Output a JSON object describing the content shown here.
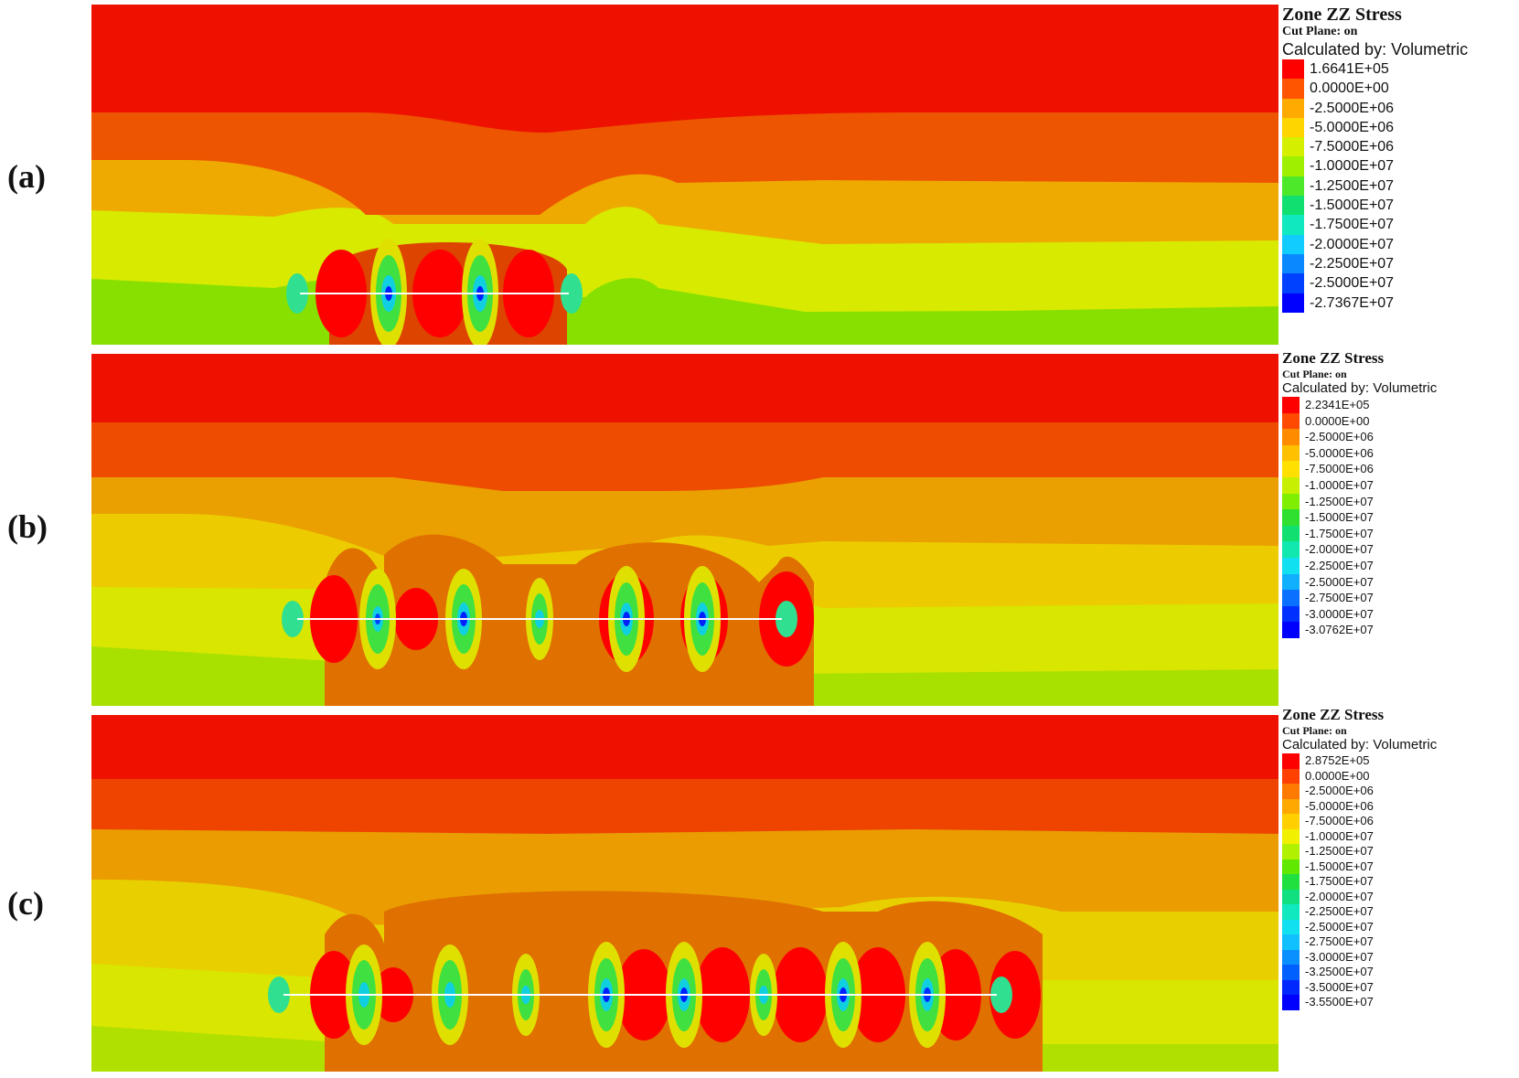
{
  "panels": [
    {
      "letter": "(a)",
      "legend": {
        "title": "Zone ZZ Stress",
        "cut_plane": "Cut Plane: on",
        "calculated_by": "Calculated by: Volumetric",
        "entries": [
          {
            "value": "1.6641E+05",
            "color": "#ff0000"
          },
          {
            "value": "0.0000E+00",
            "color": "#ff5500"
          },
          {
            "value": "-2.5000E+06",
            "color": "#ffaa00"
          },
          {
            "value": "-5.0000E+06",
            "color": "#ffd500"
          },
          {
            "value": "-7.5000E+06",
            "color": "#d4f000"
          },
          {
            "value": "-1.0000E+07",
            "color": "#9ef000"
          },
          {
            "value": "-1.2500E+07",
            "color": "#4ee82a"
          },
          {
            "value": "-1.5000E+07",
            "color": "#10e070"
          },
          {
            "value": "-1.7500E+07",
            "color": "#10e8c0"
          },
          {
            "value": "-2.0000E+07",
            "color": "#10ccff"
          },
          {
            "value": "-2.2500E+07",
            "color": "#0a88ff"
          },
          {
            "value": "-2.5000E+07",
            "color": "#0040ff"
          },
          {
            "value": "-2.7367E+07",
            "color": "#0000ff"
          }
        ]
      }
    },
    {
      "letter": "(b)",
      "legend": {
        "title": "Zone ZZ Stress",
        "cut_plane": "Cut Plane: on",
        "calculated_by": "Calculated by: Volumetric",
        "entries": [
          {
            "value": "2.2341E+05",
            "color": "#ff0000"
          },
          {
            "value": "0.0000E+00",
            "color": "#ff4a00"
          },
          {
            "value": "-2.5000E+06",
            "color": "#ff8c00"
          },
          {
            "value": "-5.0000E+06",
            "color": "#ffc000"
          },
          {
            "value": "-7.5000E+06",
            "color": "#ffe000"
          },
          {
            "value": "-1.0000E+07",
            "color": "#c6f000"
          },
          {
            "value": "-1.2500E+07",
            "color": "#80ee00"
          },
          {
            "value": "-1.5000E+07",
            "color": "#30e030"
          },
          {
            "value": "-1.7500E+07",
            "color": "#10e070"
          },
          {
            "value": "-2.0000E+07",
            "color": "#10e8b0"
          },
          {
            "value": "-2.2500E+07",
            "color": "#10e0f0"
          },
          {
            "value": "-2.5000E+07",
            "color": "#10b0ff"
          },
          {
            "value": "-2.7500E+07",
            "color": "#0a70ff"
          },
          {
            "value": "-3.0000E+07",
            "color": "#0030ff"
          },
          {
            "value": "-3.0762E+07",
            "color": "#0000ff"
          }
        ]
      }
    },
    {
      "letter": "(c)",
      "legend": {
        "title": "Zone ZZ Stress",
        "cut_plane": "Cut Plane: on",
        "calculated_by": "Calculated by: Volumetric",
        "entries": [
          {
            "value": "2.8752E+05",
            "color": "#ff0000"
          },
          {
            "value": "0.0000E+00",
            "color": "#ff4000"
          },
          {
            "value": "-2.5000E+06",
            "color": "#ff7a00"
          },
          {
            "value": "-5.0000E+06",
            "color": "#ffa800"
          },
          {
            "value": "-7.5000E+06",
            "color": "#ffd000"
          },
          {
            "value": "-1.0000E+07",
            "color": "#f0f000"
          },
          {
            "value": "-1.2500E+07",
            "color": "#b0f000"
          },
          {
            "value": "-1.5000E+07",
            "color": "#60e800"
          },
          {
            "value": "-1.7500E+07",
            "color": "#20e040"
          },
          {
            "value": "-2.0000E+07",
            "color": "#10e080"
          },
          {
            "value": "-2.2500E+07",
            "color": "#10e8c0"
          },
          {
            "value": "-2.5000E+07",
            "color": "#10e0f0"
          },
          {
            "value": "-2.7500E+07",
            "color": "#10c0ff"
          },
          {
            "value": "-3.0000E+07",
            "color": "#0a90ff"
          },
          {
            "value": "-3.2500E+07",
            "color": "#0060ff"
          },
          {
            "value": "-3.5000E+07",
            "color": "#0028ff"
          },
          {
            "value": "-3.5500E+07",
            "color": "#0000ff"
          }
        ]
      }
    }
  ]
}
